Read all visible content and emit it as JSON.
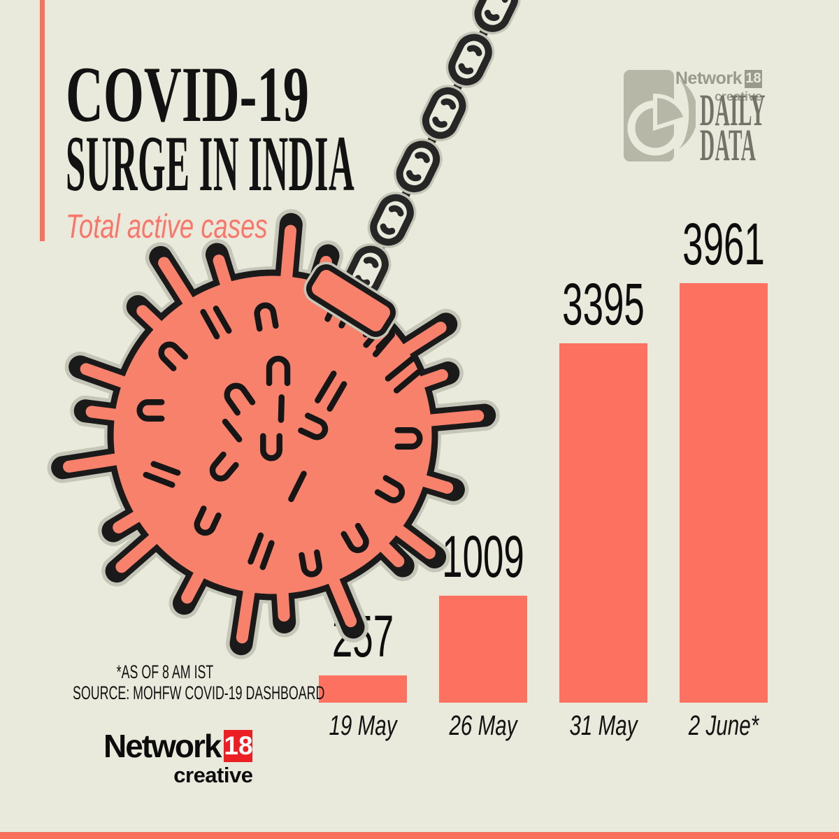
{
  "colors": {
    "background": "#E9E9DC",
    "salmon_accent": "#F9705D",
    "salmon_bar": "#FC7160",
    "salmon_virus": "#F8816B",
    "subtitle_salmon": "#F9776A",
    "ink": "#121212",
    "outline": "#1A1A1A",
    "halo": "#C6C6B8",
    "chain": "#262626",
    "red_18": "#EC1F24",
    "gray_logo": "#B7B7A8",
    "gray_brand_text": "#9A9A8C",
    "gray_daily": "#73736A"
  },
  "header": {
    "title_line1": "COVID-19",
    "title_line2": "SURGE IN INDIA",
    "subtitle": "Total active cases"
  },
  "brand_top": {
    "network": "Network",
    "eighteen": "18",
    "creative": "creative",
    "daily_line1": "DAILY",
    "daily_line2": "DATA"
  },
  "brand_bottom": {
    "network": "Network",
    "eighteen": "18",
    "creative": "creative"
  },
  "footnote": {
    "line1": "*AS OF 8 AM IST",
    "line2": "SOURCE: MOHFW COVID-19 DASHBOARD"
  },
  "chart_data": {
    "type": "bar",
    "title": "COVID-19 SURGE IN INDIA",
    "subtitle": "Total active cases",
    "categories": [
      "19 May",
      "26 May",
      "31 May",
      "2 June*"
    ],
    "values": [
      257,
      1009,
      3395,
      3961
    ],
    "value_labels": [
      "257",
      "1009",
      "3395",
      "3961"
    ],
    "xlabel": "",
    "ylabel": "Total active cases",
    "ylim": [
      0,
      3961
    ],
    "grid": false,
    "legend": "none",
    "bar_color": "#FC7160"
  }
}
